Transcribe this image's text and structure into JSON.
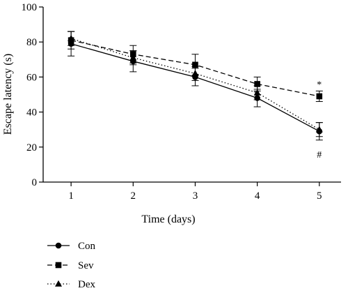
{
  "chart_data": {
    "type": "line",
    "xlabel": "Time (days)",
    "ylabel": "Escape latency (s)",
    "x": [
      1,
      2,
      3,
      4,
      5
    ],
    "xlim": [
      0.55,
      5.35
    ],
    "ylim": [
      0,
      100
    ],
    "yticks": [
      0,
      20,
      40,
      60,
      80,
      100
    ],
    "grid": false,
    "legend_position": "bottom-left",
    "series": [
      {
        "name": "Con",
        "marker": "circle",
        "line_style": "solid",
        "values": [
          79,
          69,
          60,
          48,
          29
        ],
        "error": [
          7,
          6,
          5,
          5,
          5
        ]
      },
      {
        "name": "Sev",
        "marker": "square",
        "line_style": "dashed",
        "values": [
          81,
          73,
          67,
          56,
          49
        ],
        "error": [
          5,
          5,
          6,
          4,
          3
        ]
      },
      {
        "name": "Dex",
        "marker": "triangle",
        "line_style": "dotted",
        "values": [
          82,
          71,
          62,
          51,
          30
        ],
        "error": [
          4,
          4,
          4,
          4,
          4
        ]
      }
    ],
    "annotations": [
      {
        "text": "*",
        "x": 5,
        "y": 56
      },
      {
        "text": "#",
        "x": 5,
        "y": 16
      }
    ]
  }
}
